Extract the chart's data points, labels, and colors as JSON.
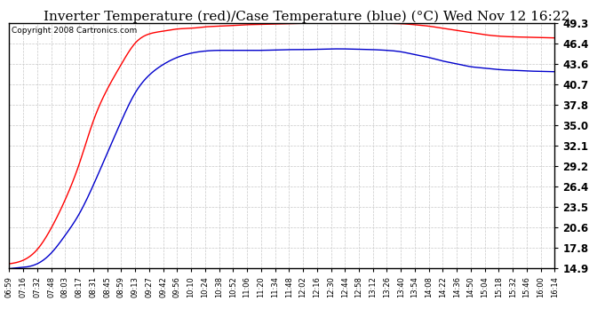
{
  "title": "Inverter Temperature (red)/Case Temperature (blue) (°C) Wed Nov 12 16:22",
  "copyright": "Copyright 2008 Cartronics.com",
  "yticks": [
    14.9,
    17.8,
    20.6,
    23.5,
    26.4,
    29.2,
    32.1,
    35.0,
    37.8,
    40.7,
    43.6,
    46.4,
    49.3
  ],
  "ymin": 14.9,
  "ymax": 49.3,
  "red_color": "#ff0000",
  "blue_color": "#0000cc",
  "background_color": "#ffffff",
  "plot_bg_color": "#ffffff",
  "grid_color": "#c8c8c8",
  "title_fontsize": 11,
  "xtick_labels": [
    "06:59",
    "07:16",
    "07:32",
    "07:48",
    "08:03",
    "08:17",
    "08:31",
    "08:45",
    "08:59",
    "09:13",
    "09:27",
    "09:42",
    "09:56",
    "10:10",
    "10:24",
    "10:38",
    "10:52",
    "11:06",
    "11:20",
    "11:34",
    "11:48",
    "12:02",
    "12:16",
    "12:30",
    "12:44",
    "12:58",
    "13:12",
    "13:26",
    "13:40",
    "13:54",
    "14:08",
    "14:22",
    "14:36",
    "14:50",
    "15:04",
    "15:18",
    "15:32",
    "15:46",
    "16:00",
    "16:14"
  ],
  "red_values": [
    15.5,
    16.0,
    17.5,
    20.5,
    24.5,
    29.5,
    35.5,
    40.0,
    43.5,
    46.5,
    47.8,
    48.2,
    48.5,
    48.6,
    48.8,
    48.9,
    49.0,
    49.1,
    49.15,
    49.2,
    49.25,
    49.3,
    49.3,
    49.28,
    49.3,
    49.32,
    49.35,
    49.3,
    49.25,
    49.1,
    48.9,
    48.6,
    48.3,
    48.0,
    47.7,
    47.5,
    47.4,
    47.35,
    47.3,
    47.25
  ],
  "blue_values": [
    14.8,
    15.0,
    15.5,
    17.0,
    19.5,
    22.5,
    26.5,
    31.0,
    35.5,
    39.5,
    42.0,
    43.5,
    44.5,
    45.1,
    45.4,
    45.5,
    45.5,
    45.5,
    45.5,
    45.55,
    45.6,
    45.6,
    45.65,
    45.7,
    45.7,
    45.65,
    45.6,
    45.5,
    45.3,
    44.9,
    44.5,
    44.0,
    43.6,
    43.2,
    43.0,
    42.8,
    42.7,
    42.6,
    42.55,
    42.5
  ]
}
